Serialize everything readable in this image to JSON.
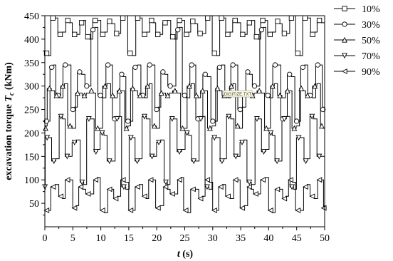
{
  "chart_data": {
    "type": "line",
    "xlabel_parts": [
      "t",
      " (s)"
    ],
    "ylabel_parts": [
      "excavation torque ",
      "T",
      "c",
      " (kNm)"
    ],
    "xlim": [
      0,
      50
    ],
    "ylim": [
      0,
      450
    ],
    "xticks": [
      0,
      5,
      10,
      15,
      20,
      25,
      30,
      35,
      40,
      45,
      50
    ],
    "yticks": [
      50,
      100,
      150,
      200,
      250,
      300,
      350,
      400,
      450
    ],
    "grid": false,
    "legend_position": "outside-right",
    "period_s": 2.5,
    "series": [
      {
        "name": "10%",
        "marker": "square",
        "levels": [
          370,
          445,
          410,
          440,
          410,
          435,
          405,
          440,
          410,
          438,
          412,
          445
        ],
        "phase": 0.0
      },
      {
        "name": "30%",
        "marker": "circle",
        "levels": [
          225,
          340,
          280,
          345,
          250,
          330,
          300,
          420,
          280,
          345,
          230,
          325
        ],
        "phase": 0.4
      },
      {
        "name": "50%",
        "marker": "triangle-up",
        "levels": [
          210,
          295,
          280,
          300,
          215,
          285,
          280,
          290,
          210,
          300,
          280,
          290
        ],
        "phase": 0.8
      },
      {
        "name": "70%",
        "marker": "triangle-down",
        "levels": [
          85,
          190,
          140,
          235,
          150,
          180,
          95,
          230,
          160,
          200,
          140,
          230
        ],
        "phase": 1.2
      },
      {
        "name": "90%",
        "marker": "triangle-left",
        "levels": [
          35,
          85,
          65,
          100,
          40,
          85,
          70,
          100,
          35,
          80,
          60,
          100
        ],
        "phase": 0.2
      }
    ]
  },
  "watermark": "DIGITIZE.TXT"
}
